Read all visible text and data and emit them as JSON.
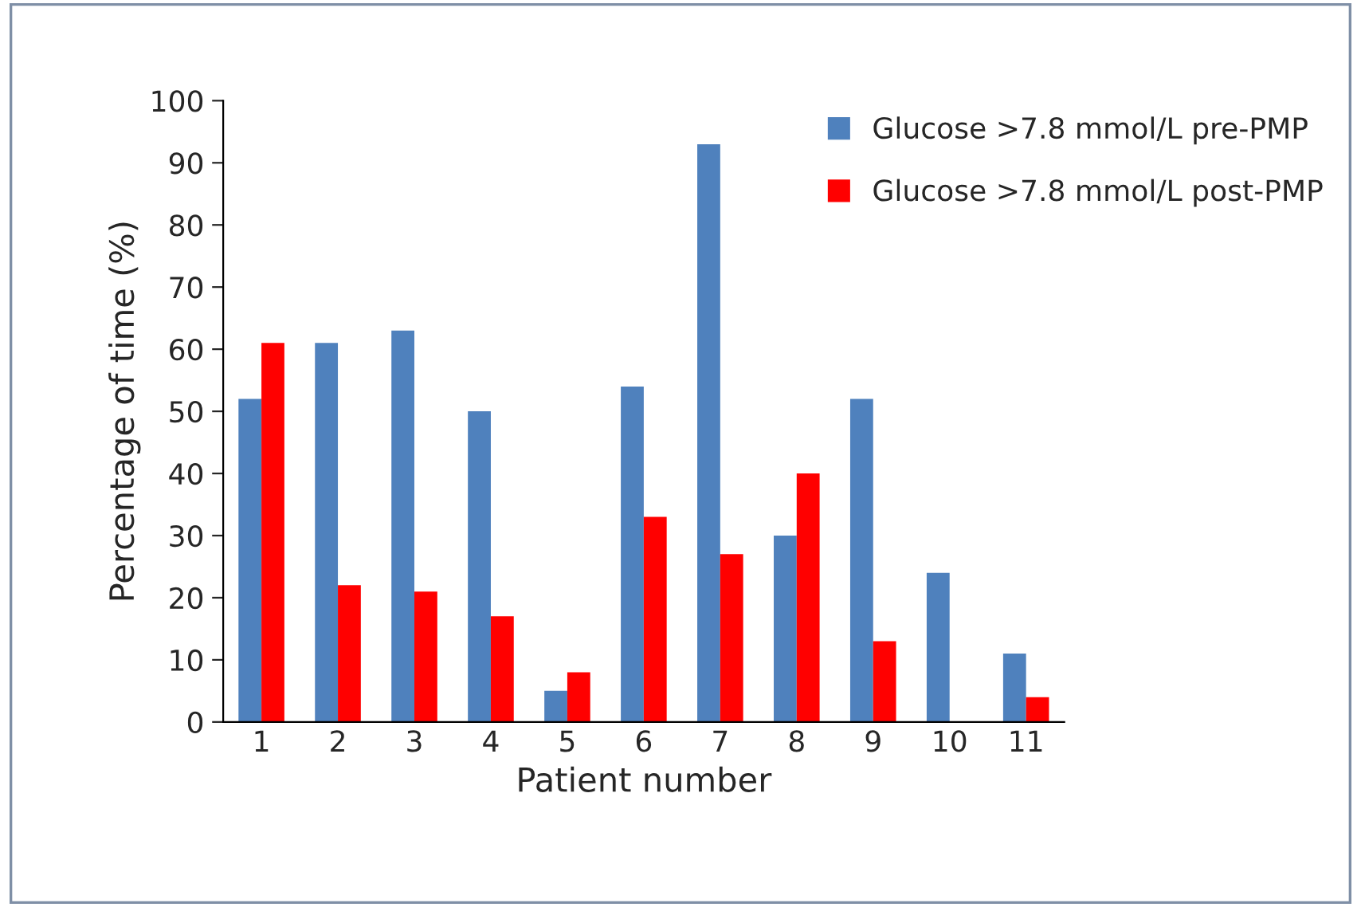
{
  "chart_data": {
    "type": "bar",
    "xlabel": "Patient number",
    "ylabel": "Percentage of time (%)",
    "categories": [
      "1",
      "2",
      "3",
      "4",
      "5",
      "6",
      "7",
      "8",
      "9",
      "10",
      "11"
    ],
    "series": [
      {
        "name": "Glucose >7.8 mmol/L pre-PMP",
        "color": "#4f81bd",
        "values": [
          52,
          61,
          63,
          50,
          5,
          54,
          93,
          30,
          52,
          24,
          11
        ]
      },
      {
        "name": "Glucose >7.8 mmol/L post-PMP",
        "color": "#ff0000",
        "values": [
          61,
          22,
          21,
          17,
          8,
          33,
          27,
          40,
          13,
          null,
          4
        ]
      }
    ],
    "ylim": [
      0,
      100
    ],
    "yticks": [
      0,
      10,
      20,
      30,
      40,
      50,
      60,
      70,
      80,
      90,
      100
    ],
    "grid": false,
    "legend": "top right"
  }
}
